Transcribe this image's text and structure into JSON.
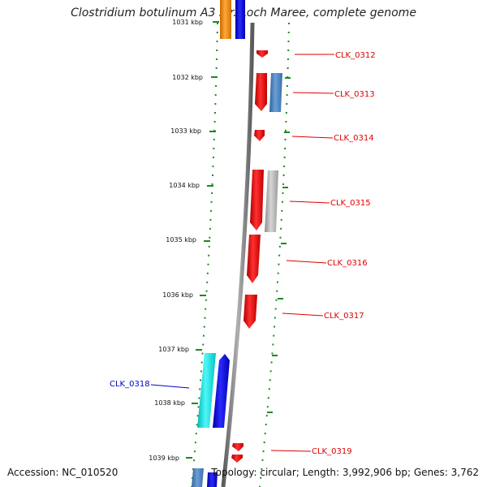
{
  "title": "Clostridium botulinum A3 str. Loch Maree, complete genome",
  "footer": {
    "accession": "Accession: NC_010520",
    "summary": "Topology: circular; Length: 3,992,906 bp; Genes: 3,762"
  },
  "ticks": [
    "1031 kbp",
    "1032 kbp",
    "1033 kbp",
    "1034 kbp",
    "1035 kbp",
    "1036 kbp",
    "1037 kbp",
    "1038 kbp",
    "1039 kbp"
  ],
  "genes": [
    {
      "name": "CLK_0312",
      "color": "#dd0000"
    },
    {
      "name": "CLK_0313",
      "color": "#dd0000"
    },
    {
      "name": "CLK_0314",
      "color": "#dd0000"
    },
    {
      "name": "CLK_0315",
      "color": "#dd0000"
    },
    {
      "name": "CLK_0316",
      "color": "#dd0000"
    },
    {
      "name": "CLK_0317",
      "color": "#dd0000"
    },
    {
      "name": "CLK_0318",
      "color": "#0000cc"
    },
    {
      "name": "CLK_0319",
      "color": "#dd0000"
    }
  ],
  "colors": {
    "forward_cds": "#ee0000",
    "reverse_cds": "#0000ee",
    "steelblue_feature": "#4f86c0",
    "grey_feature": "#b3b3b3",
    "cyan_feature": "#19e6e6",
    "orange_feature": "#f08a00",
    "backbone": "#7a7a7a",
    "ruler": "#1f8a1f"
  }
}
